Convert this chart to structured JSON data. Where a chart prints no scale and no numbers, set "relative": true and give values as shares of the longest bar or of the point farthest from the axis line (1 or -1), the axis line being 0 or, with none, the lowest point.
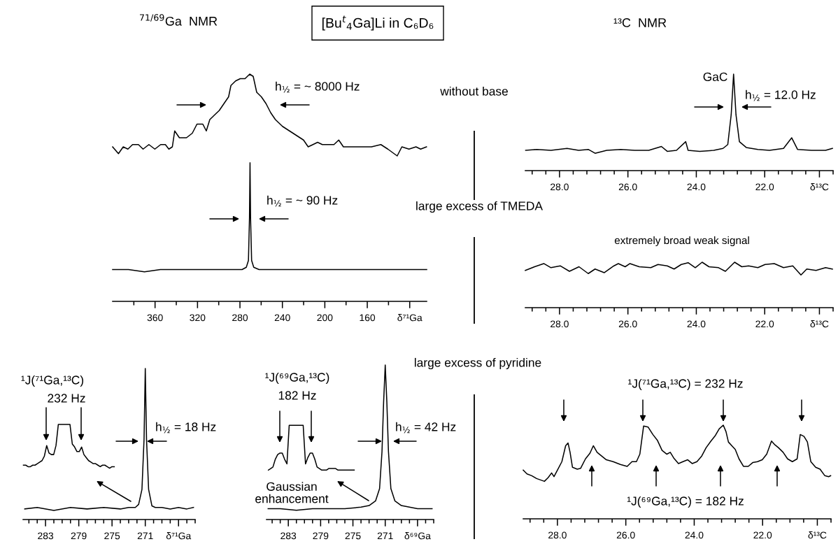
{
  "chart_data": [
    {
      "type": "other",
      "title": "[Bu$^{t}$$_{4}$Ga]Li in C₆D₆",
      "annotations": [
        "without base",
        "large excess of TMEDA",
        "large excess of pyridine"
      ]
    },
    {
      "type": "line",
      "title": "$^{71/69}$Ga  NMR",
      "relative": true,
      "xlim": [
        400,
        104
      ],
      "annotations": [
        "h$_{½}$ = ~ 8000 Hz",
        "h$_{½}$ = ~ 90 Hz"
      ],
      "xticks": [
        {
          "value": 380,
          "label": null
        },
        360,
        {
          "value": 340,
          "label": null
        },
        320,
        {
          "value": 300,
          "label": null
        },
        280,
        {
          "value": 260,
          "label": null
        },
        240,
        {
          "value": 220,
          "label": null
        },
        200,
        {
          "value": 180,
          "label": null
        },
        160,
        {
          "value": 140,
          "label": null
        },
        {
          "value": 120,
          "label": "δ⁷¹Ga"
        }
      ],
      "series": [
        {
          "color": "#000000",
          "x": [
            400.0,
            394.5,
            390.0,
            385.6,
            381.2,
            375.7,
            371.3,
            365.8,
            360.2,
            354.7,
            350.3,
            347.0,
            343.7,
            341.5,
            337.1,
            330.4,
            324.9,
            320.5,
            315.0,
            311.7,
            308.4,
            304.0,
            299.5,
            295.1,
            290.7,
            288.5,
            284.1,
            279.7,
            275.2,
            270.8,
            267.5,
            264.2,
            259.8,
            255.4,
            251.0,
            246.6,
            239.9,
            233.3,
            226.7,
            220.1,
            215.7,
            211.2,
            206.8,
            202.4,
            195.8,
            191.4,
            186.9,
            182.5,
            173.7,
            164.9,
            156.0,
            147.2,
            140.6,
            131.8,
            127.4,
            120.7,
            114.1,
            109.7,
            104.2
          ],
          "values": [
            0.68,
            0.65,
            0.68,
            0.67,
            0.69,
            0.69,
            0.67,
            0.69,
            0.67,
            0.69,
            0.69,
            0.67,
            0.68,
            0.75,
            0.72,
            0.72,
            0.74,
            0.78,
            0.78,
            0.75,
            0.8,
            0.82,
            0.84,
            0.87,
            0.9,
            0.95,
            0.97,
            0.98,
            0.98,
            1,
            0.99,
            0.92,
            0.9,
            0.87,
            0.83,
            0.8,
            0.77,
            0.75,
            0.73,
            0.71,
            0.68,
            0.69,
            0.7,
            0.69,
            0.69,
            0.69,
            0.71,
            0.68,
            0.68,
            0.68,
            0.68,
            0.69,
            0.67,
            0.64,
            0.68,
            0.67,
            0.68,
            0.67,
            0.68
          ]
        },
        {
          "color": "#000000",
          "x": [
            400,
            385,
            370,
            355,
            340,
            325,
            310,
            295,
            285,
            278,
            274,
            272,
            271,
            270.5,
            270,
            269,
            267,
            262,
            250,
            235,
            220,
            205,
            190,
            175,
            160,
            145,
            130,
            115,
            104
          ],
          "values": [
            0.14,
            0.14,
            0.13,
            0.14,
            0.14,
            0.14,
            0.14,
            0.14,
            0.14,
            0.14,
            0.15,
            0.18,
            0.37,
            0.61,
            0.37,
            0.18,
            0.15,
            0.14,
            0.14,
            0.14,
            0.14,
            0.14,
            0.14,
            0.14,
            0.14,
            0.14,
            0.14,
            0.14,
            0.14
          ]
        }
      ]
    },
    {
      "type": "line",
      "title": "¹³C  NMR",
      "relative": true,
      "color": "#000000",
      "xlim": [
        29,
        20
      ],
      "annotations": [
        {
          "text": "GaC",
          "x": 22.91,
          "y": 1
        },
        "h$_{½}$ = 12.0 Hz"
      ],
      "xticks": [
        {
          "value": 28.8,
          "label": null
        },
        {
          "value": 28.4,
          "label": null
        },
        {
          "value": 28,
          "label": "28.0"
        },
        {
          "value": 27.6,
          "label": null
        },
        {
          "value": 27.2,
          "label": null
        },
        {
          "value": 26.8,
          "label": null
        },
        {
          "value": 26.4,
          "label": null
        },
        {
          "value": 26,
          "label": "26.0"
        },
        {
          "value": 25.6,
          "label": null
        },
        {
          "value": 25.2,
          "label": null
        },
        {
          "value": 24.8,
          "label": null
        },
        {
          "value": 24.4,
          "label": null
        },
        {
          "value": 24,
          "label": "24.0"
        },
        {
          "value": 23.6,
          "label": null
        },
        {
          "value": 23.2,
          "label": null
        },
        {
          "value": 22.8,
          "label": null
        },
        {
          "value": 22.4,
          "label": null
        },
        {
          "value": 22,
          "label": "22.0"
        },
        {
          "value": 21.6,
          "label": null
        },
        {
          "value": 21.2,
          "label": null
        },
        {
          "value": 20.8,
          "label": null
        },
        {
          "value": 20.4,
          "label": "δ¹³C"
        },
        {
          "value": 20,
          "label": null
        }
      ],
      "x": [
        28.99,
        28.66,
        28.25,
        27.78,
        27.44,
        27.16,
        26.96,
        26.62,
        26.21,
        25.8,
        25.39,
        25.02,
        24.85,
        24.58,
        24.31,
        24.24,
        23.9,
        23.49,
        23.22,
        23.08,
        22.98,
        22.91,
        22.84,
        22.74,
        22.54,
        22.2,
        21.86,
        21.45,
        21.21,
        21.04,
        20.63,
        20.22,
        20.02
      ],
      "values": [
        0.21,
        0.22,
        0.21,
        0.23,
        0.21,
        0.22,
        0.18,
        0.21,
        0.22,
        0.21,
        0.21,
        0.25,
        0.2,
        0.21,
        0.3,
        0.21,
        0.2,
        0.21,
        0.23,
        0.27,
        0.58,
        1,
        0.58,
        0.3,
        0.24,
        0.22,
        0.21,
        0.23,
        0.34,
        0.22,
        0.21,
        0.21,
        0.23
      ]
    },
    {
      "type": "line",
      "relative": true,
      "color": "#000000",
      "xlim": [
        29,
        20
      ],
      "annotations": [
        "extremely broad weak signal"
      ],
      "xticks": [
        {
          "value": 28.8,
          "label": null
        },
        {
          "value": 28.4,
          "label": null
        },
        {
          "value": 28,
          "label": "28.0"
        },
        {
          "value": 27.6,
          "label": null
        },
        {
          "value": 27.2,
          "label": null
        },
        {
          "value": 26.8,
          "label": null
        },
        {
          "value": 26.4,
          "label": null
        },
        {
          "value": 26,
          "label": "26.0"
        },
        {
          "value": 25.6,
          "label": null
        },
        {
          "value": 25.2,
          "label": null
        },
        {
          "value": 24.8,
          "label": null
        },
        {
          "value": 24.4,
          "label": null
        },
        {
          "value": 24,
          "label": "24.0"
        },
        {
          "value": 23.6,
          "label": null
        },
        {
          "value": 23.2,
          "label": null
        },
        {
          "value": 22.8,
          "label": null
        },
        {
          "value": 22.4,
          "label": null
        },
        {
          "value": 22,
          "label": "22.0"
        },
        {
          "value": 21.6,
          "label": null
        },
        {
          "value": 21.2,
          "label": null
        },
        {
          "value": 20.8,
          "label": null
        },
        {
          "value": 20.4,
          "label": "δ¹³C"
        },
        {
          "value": 20,
          "label": null
        }
      ],
      "x": [
        29.0,
        28.73,
        28.46,
        28.25,
        27.98,
        27.71,
        27.43,
        27.16,
        26.96,
        26.69,
        26.41,
        26.28,
        26.08,
        25.94,
        25.67,
        25.33,
        25.12,
        24.85,
        24.65,
        24.44,
        24.24,
        24.03,
        23.83,
        23.63,
        23.35,
        23.15,
        22.88,
        22.67,
        22.47,
        22.2,
        21.99,
        21.72,
        21.45,
        21.18,
        20.94,
        20.77,
        20.5,
        20.22,
        20.02
      ],
      "values": [
        0.82,
        0.9,
        0.97,
        0.88,
        0.92,
        0.8,
        0.9,
        0.75,
        0.85,
        0.77,
        0.92,
        0.97,
        0.9,
        0.97,
        0.9,
        0.88,
        0.95,
        0.92,
        0.85,
        0.95,
        0.99,
        0.88,
        1,
        0.9,
        0.88,
        0.8,
        1,
        0.9,
        0.92,
        0.88,
        0.95,
        0.97,
        0.88,
        0.92,
        0.72,
        0.85,
        0.82,
        0.88,
        0.85
      ]
    },
    {
      "type": "line",
      "relative": true,
      "xlim": [
        285.7,
        265
      ],
      "annotations": [
        "h$_{½}$ = 18 Hz",
        "¹J(⁷¹Ga,¹³C)",
        "232 Hz"
      ],
      "xticks": [
        {
          "value": 285,
          "label": null
        },
        {
          "value": 284,
          "label": null
        },
        283,
        {
          "value": 282,
          "label": null
        },
        {
          "value": 281,
          "label": null
        },
        {
          "value": 280,
          "label": null
        },
        279,
        {
          "value": 278,
          "label": null
        },
        {
          "value": 277,
          "label": null
        },
        {
          "value": 276,
          "label": null
        },
        275,
        {
          "value": 274,
          "label": null
        },
        {
          "value": 273,
          "label": null
        },
        {
          "value": 272,
          "label": null
        },
        271,
        {
          "value": 270,
          "label": null
        },
        {
          "value": 269,
          "label": null
        },
        {
          "value": 268,
          "label": null
        },
        {
          "value": 267,
          "label": "δ⁷¹Ga"
        },
        {
          "value": 266,
          "label": null
        },
        {
          "value": 265,
          "label": null
        }
      ],
      "series": [
        {
          "color": "#000000",
          "x": [
            285.5,
            284,
            282,
            280,
            278,
            276,
            274,
            273,
            272.2,
            271.8,
            271.4,
            271.15,
            271,
            270.85,
            270.6,
            270.2,
            269.8,
            269,
            268,
            267,
            266,
            265.2
          ],
          "values": [
            0.07,
            0.08,
            0.06,
            0.08,
            0.07,
            0.08,
            0.07,
            0.08,
            0.08,
            0.1,
            0.2,
            0.53,
            1,
            0.53,
            0.2,
            0.09,
            0.08,
            0.08,
            0.07,
            0.08,
            0.07,
            0.08
          ]
        },
        {
          "color": "#000000",
          "x": [
            285.66,
            285.38,
            285.1,
            284.82,
            284.54,
            284.26,
            283.98,
            283.7,
            283.42,
            283.14,
            282.86,
            282.58,
            282.3,
            282.02,
            281.74,
            281.46,
            281.18,
            280.9,
            280.62,
            280.34,
            280.06,
            279.78,
            279.5,
            279.22,
            278.94,
            278.66,
            278.38,
            278.1,
            277.82,
            277.54,
            277.26,
            276.98,
            276.7,
            276.42,
            276.14,
            275.86,
            275.58,
            275.29,
            275.01,
            274.73
          ],
          "values": [
            0.36,
            0.36,
            0.35,
            0.35,
            0.36,
            0.36,
            0.37,
            0.38,
            0.39,
            0.42,
            0.49,
            0.44,
            0.43,
            0.43,
            0.49,
            0.63,
            0.63,
            0.63,
            0.63,
            0.63,
            0.63,
            0.5,
            0.48,
            0.45,
            0.45,
            0.48,
            0.43,
            0.41,
            0.39,
            0.38,
            0.37,
            0.37,
            0.36,
            0.35,
            0.36,
            0.36,
            0.35,
            0.34,
            0.35,
            0.35
          ]
        }
      ]
    },
    {
      "type": "line",
      "relative": true,
      "xlim": [
        285.7,
        265
      ],
      "annotations": [
        "h$_{½}$ = 42 Hz",
        "Gaussian\nenhancement",
        "¹J(⁶⁹Ga,¹³C)",
        "182 Hz"
      ],
      "xticks": [
        {
          "value": 285,
          "label": null
        },
        {
          "value": 284,
          "label": null
        },
        283,
        {
          "value": 282,
          "label": null
        },
        {
          "value": 281,
          "label": null
        },
        {
          "value": 280,
          "label": null
        },
        279,
        {
          "value": 278,
          "label": null
        },
        {
          "value": 277,
          "label": null
        },
        {
          "value": 276,
          "label": null
        },
        275,
        {
          "value": 274,
          "label": null
        },
        {
          "value": 273,
          "label": null
        },
        {
          "value": 272,
          "label": null
        },
        271,
        {
          "value": 270,
          "label": null
        },
        {
          "value": 269,
          "label": null
        },
        {
          "value": 268,
          "label": null
        },
        {
          "value": 267,
          "label": "δ⁶⁹Ga"
        },
        {
          "value": 266,
          "label": null
        },
        {
          "value": 265,
          "label": null
        }
      ],
      "series": [
        {
          "color": "#000000",
          "x": [
            285.5,
            284,
            282,
            280,
            278,
            276,
            274,
            273,
            272.2,
            271.7,
            271.4,
            271.2,
            271,
            270.8,
            270.6,
            270.3,
            269.8,
            269,
            268,
            267,
            265.2
          ],
          "values": [
            0.07,
            0.07,
            0.06,
            0.07,
            0.07,
            0.07,
            0.08,
            0.09,
            0.12,
            0.2,
            0.44,
            0.76,
            1,
            0.76,
            0.44,
            0.2,
            0.12,
            0.09,
            0.08,
            0.07,
            0.07
          ]
        },
        {
          "color": "#000000",
          "x": [
            285.47,
            285.18,
            284.9,
            284.61,
            284.32,
            284.03,
            283.75,
            283.46,
            283.17,
            282.89,
            282.6,
            282.31,
            282.03,
            281.74,
            281.45,
            281.16,
            280.87,
            280.59,
            280.3,
            280.01,
            279.72,
            279.44,
            279.15,
            278.86,
            278.58,
            278.28,
            278.0,
            277.71,
            277.42,
            277.14,
            276.85,
            276.56,
            276.28,
            275.99,
            275.7,
            275.41,
            275.13,
            274.84
          ],
          "values": [
            0.32,
            0.33,
            0.34,
            0.39,
            0.42,
            0.43,
            0.43,
            0.39,
            0.36,
            0.61,
            0.61,
            0.61,
            0.61,
            0.61,
            0.61,
            0.61,
            0.36,
            0.4,
            0.43,
            0.43,
            0.39,
            0.34,
            0.33,
            0.32,
            0.32,
            0.32,
            0.33,
            0.33,
            0.33,
            0.33,
            0.32,
            0.32,
            0.32,
            0.32,
            0.32,
            0.32,
            0.32,
            0.32
          ]
        }
      ]
    },
    {
      "type": "line",
      "relative": true,
      "color": "#000000",
      "xlim": [
        29,
        20
      ],
      "annotations": [
        "¹J(⁷¹Ga,¹³C) = 232 Hz",
        "¹J(⁶⁹Ga,¹³C) = 182 Hz"
      ],
      "xticks": [
        {
          "value": 28.8,
          "label": null
        },
        {
          "value": 28.4,
          "label": null
        },
        {
          "value": 28,
          "label": "28.0"
        },
        {
          "value": 27.6,
          "label": null
        },
        {
          "value": 27.2,
          "label": null
        },
        {
          "value": 26.8,
          "label": null
        },
        {
          "value": 26.4,
          "label": null
        },
        {
          "value": 26,
          "label": "26.0"
        },
        {
          "value": 25.6,
          "label": null
        },
        {
          "value": 25.2,
          "label": null
        },
        {
          "value": 24.8,
          "label": null
        },
        {
          "value": 24.4,
          "label": null
        },
        {
          "value": 24,
          "label": "24.0"
        },
        {
          "value": 23.6,
          "label": null
        },
        {
          "value": 23.2,
          "label": null
        },
        {
          "value": 22.8,
          "label": null
        },
        {
          "value": 22.4,
          "label": null
        },
        {
          "value": 22,
          "label": "22.0"
        },
        {
          "value": 21.6,
          "label": null
        },
        {
          "value": 21.2,
          "label": null
        },
        {
          "value": 20.8,
          "label": null
        },
        {
          "value": 20.4,
          "label": "δ¹³C"
        },
        {
          "value": 20,
          "label": null
        }
      ],
      "x": [
        29.0,
        28.89,
        28.75,
        28.61,
        28.38,
        28.27,
        28.17,
        28.1,
        28.0,
        27.87,
        27.76,
        27.69,
        27.63,
        27.56,
        27.42,
        27.32,
        27.18,
        27.05,
        26.95,
        26.84,
        26.74,
        26.57,
        26.37,
        26.16,
        25.96,
        25.82,
        25.69,
        25.59,
        25.48,
        25.35,
        25.21,
        25.08,
        24.94,
        24.8,
        24.7,
        24.6,
        24.46,
        24.33,
        24.19,
        24.06,
        23.92,
        23.78,
        23.65,
        23.51,
        23.38,
        23.27,
        23.15,
        23.07,
        23.0,
        22.9,
        22.8,
        22.69,
        22.56,
        22.42,
        22.29,
        22.15,
        22.01,
        21.88,
        21.74,
        21.64,
        21.54,
        21.4,
        21.27,
        21.13,
        20.99,
        20.9,
        20.79,
        20.69,
        20.59,
        20.45,
        20.32,
        20.18,
        20.07,
        20.01
      ],
      "values": [
        0.52,
        0.48,
        0.46,
        0.43,
        0.4,
        0.44,
        0.49,
        0.45,
        0.52,
        0.61,
        0.78,
        0.81,
        0.71,
        0.55,
        0.53,
        0.54,
        0.64,
        0.7,
        0.78,
        0.71,
        0.68,
        0.63,
        0.61,
        0.58,
        0.56,
        0.61,
        0.61,
        0.69,
        0.99,
        0.98,
        0.9,
        0.84,
        0.73,
        0.69,
        0.71,
        0.65,
        0.59,
        0.61,
        0.63,
        0.59,
        0.61,
        0.67,
        0.76,
        0.83,
        0.89,
        0.96,
        1,
        0.93,
        0.82,
        0.78,
        0.74,
        0.64,
        0.56,
        0.56,
        0.6,
        0.61,
        0.63,
        0.69,
        0.83,
        0.79,
        0.76,
        0.71,
        0.64,
        0.61,
        0.64,
        0.9,
        0.88,
        0.82,
        0.61,
        0.55,
        0.53,
        0.46,
        0.45,
        0.46
      ]
    }
  ]
}
